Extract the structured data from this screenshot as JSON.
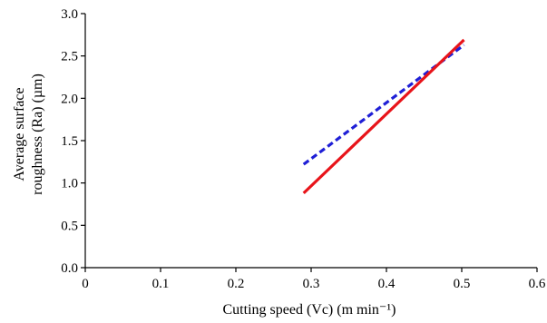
{
  "chart_data": {
    "type": "line",
    "title": "",
    "xlabel": "Cutting speed (Vc) (m min⁻¹)",
    "ylabel_lines": [
      "Average surface",
      "roughness (Ra) (µm)"
    ],
    "xlim": [
      0,
      0.6
    ],
    "ylim": [
      0,
      3.0
    ],
    "xticks": [
      0,
      0.1,
      0.2,
      0.3,
      0.4,
      0.5,
      0.6
    ],
    "xtick_labels": [
      "0",
      "0.1",
      "0.2",
      "0.3",
      "0.4",
      "0.5",
      "0.6"
    ],
    "yticks": [
      0,
      0.5,
      1.0,
      1.5,
      2.0,
      2.5,
      3.0
    ],
    "ytick_labels": [
      "0.0",
      "0.5",
      "1.0",
      "1.5",
      "2.0",
      "2.5",
      "3.0"
    ],
    "grid": false,
    "legend": "none",
    "series": [
      {
        "x": [
          0.29,
          0.503
        ],
        "y": [
          1.22,
          2.63
        ],
        "color": "#1f1fd6",
        "style": "dashed"
      },
      {
        "x": [
          0.29,
          0.503
        ],
        "y": [
          0.88,
          2.69
        ],
        "color": "#e8141a",
        "style": "solid"
      }
    ]
  }
}
